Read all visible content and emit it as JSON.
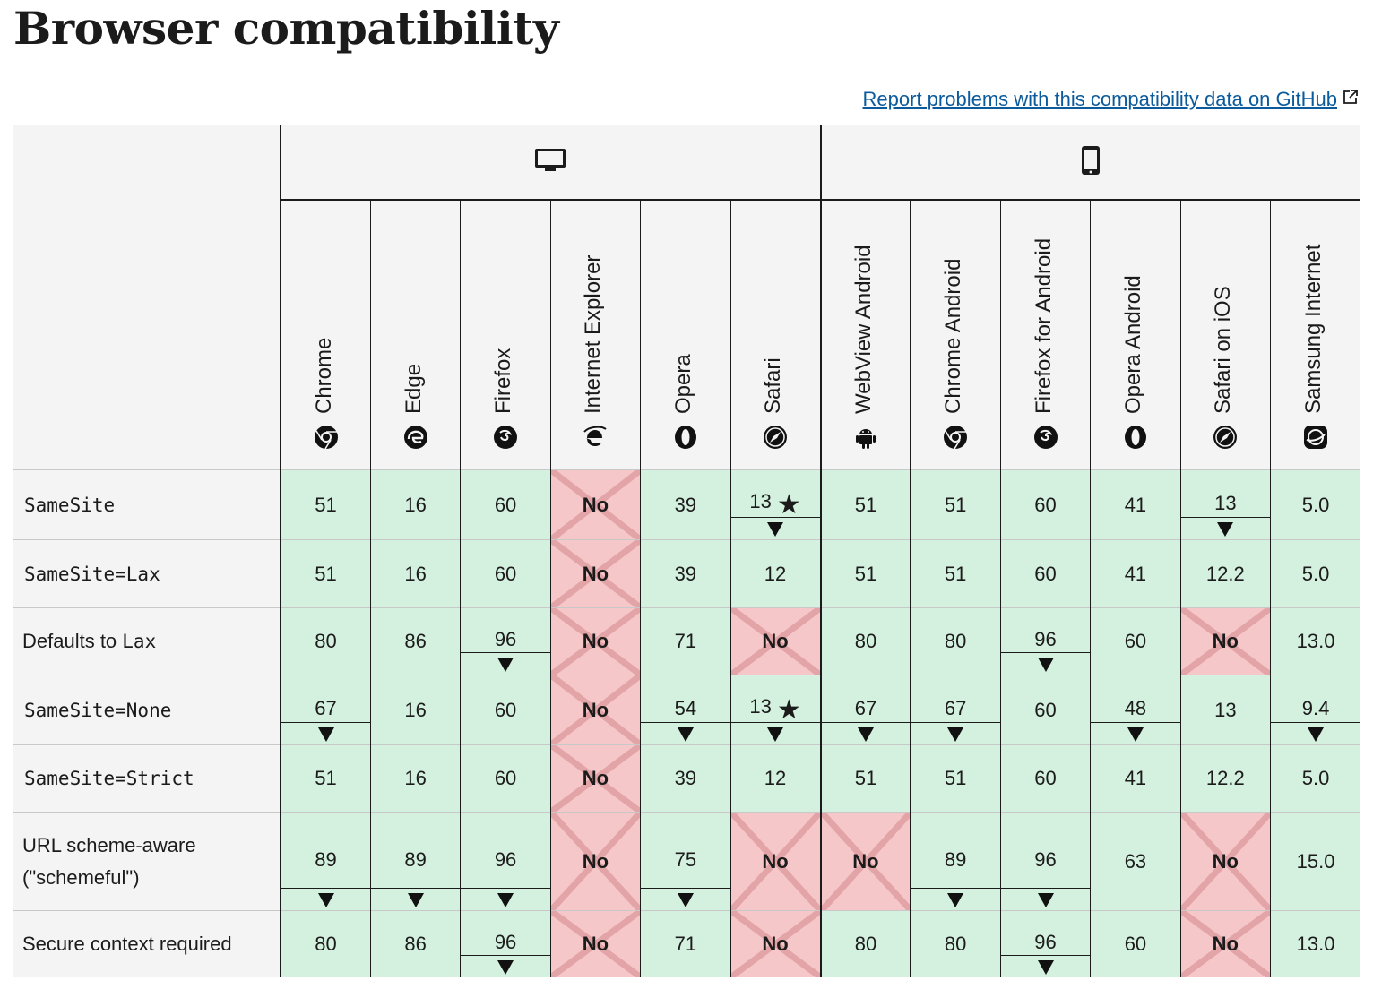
{
  "page": {
    "title": "Browser compatibility",
    "report_link": "Report problems with this compatibility data on GitHub"
  },
  "platforms": {
    "desktop_icon": "desktop-icon",
    "mobile_icon": "mobile-icon"
  },
  "browsers": [
    {
      "name": "Chrome",
      "icon": "chrome-icon"
    },
    {
      "name": "Edge",
      "icon": "edge-icon"
    },
    {
      "name": "Firefox",
      "icon": "firefox-icon"
    },
    {
      "name": "Internet Explorer",
      "icon": "ie-icon"
    },
    {
      "name": "Opera",
      "icon": "opera-icon"
    },
    {
      "name": "Safari",
      "icon": "safari-icon"
    },
    {
      "name": "WebView Android",
      "icon": "android-icon"
    },
    {
      "name": "Chrome Android",
      "icon": "chrome-icon"
    },
    {
      "name": "Firefox for Android",
      "icon": "firefox-icon"
    },
    {
      "name": "Opera Android",
      "icon": "opera-icon"
    },
    {
      "name": "Safari on iOS",
      "icon": "safari-icon"
    },
    {
      "name": "Samsung Internet",
      "icon": "samsung-icon"
    }
  ],
  "colors": {
    "yes": "#d4f0df",
    "no": "#f6c7c9",
    "link": "#0b5a9c"
  },
  "features": [
    {
      "label": "SameSite",
      "code": true,
      "cells": [
        {
          "v": "51"
        },
        {
          "v": "16"
        },
        {
          "v": "60"
        },
        {
          "v": "No",
          "no": true
        },
        {
          "v": "39"
        },
        {
          "v": "13",
          "star": true,
          "arrow": true
        },
        {
          "v": "51"
        },
        {
          "v": "51"
        },
        {
          "v": "60"
        },
        {
          "v": "41"
        },
        {
          "v": "13",
          "arrow": true
        },
        {
          "v": "5.0"
        }
      ]
    },
    {
      "label": "SameSite=Lax",
      "code": true,
      "cells": [
        {
          "v": "51"
        },
        {
          "v": "16"
        },
        {
          "v": "60"
        },
        {
          "v": "No",
          "no": true
        },
        {
          "v": "39"
        },
        {
          "v": "12"
        },
        {
          "v": "51"
        },
        {
          "v": "51"
        },
        {
          "v": "60"
        },
        {
          "v": "41"
        },
        {
          "v": "12.2"
        },
        {
          "v": "5.0"
        }
      ]
    },
    {
      "label": "Defaults to ",
      "code_suffix": "Lax",
      "cells": [
        {
          "v": "80"
        },
        {
          "v": "86"
        },
        {
          "v": "96",
          "arrow": true
        },
        {
          "v": "No",
          "no": true
        },
        {
          "v": "71"
        },
        {
          "v": "No",
          "no": true
        },
        {
          "v": "80"
        },
        {
          "v": "80"
        },
        {
          "v": "96",
          "arrow": true
        },
        {
          "v": "60"
        },
        {
          "v": "No",
          "no": true
        },
        {
          "v": "13.0"
        }
      ]
    },
    {
      "label": "SameSite=None",
      "code": true,
      "cells": [
        {
          "v": "67",
          "arrow": true
        },
        {
          "v": "16"
        },
        {
          "v": "60"
        },
        {
          "v": "No",
          "no": true
        },
        {
          "v": "54",
          "arrow": true
        },
        {
          "v": "13",
          "star": true,
          "arrow": true
        },
        {
          "v": "67",
          "arrow": true
        },
        {
          "v": "67",
          "arrow": true
        },
        {
          "v": "60"
        },
        {
          "v": "48",
          "arrow": true
        },
        {
          "v": "13"
        },
        {
          "v": "9.4",
          "arrow": true
        }
      ]
    },
    {
      "label": "SameSite=Strict",
      "code": true,
      "cells": [
        {
          "v": "51"
        },
        {
          "v": "16"
        },
        {
          "v": "60"
        },
        {
          "v": "No",
          "no": true
        },
        {
          "v": "39"
        },
        {
          "v": "12"
        },
        {
          "v": "51"
        },
        {
          "v": "51"
        },
        {
          "v": "60"
        },
        {
          "v": "41"
        },
        {
          "v": "12.2"
        },
        {
          "v": "5.0"
        }
      ]
    },
    {
      "label": "URL scheme-aware",
      "label2": "(\"schemeful\")",
      "cells": [
        {
          "v": "89",
          "arrow": true
        },
        {
          "v": "89",
          "arrow": true
        },
        {
          "v": "96",
          "arrow": true
        },
        {
          "v": "No",
          "no": true
        },
        {
          "v": "75",
          "arrow": true
        },
        {
          "v": "No",
          "no": true
        },
        {
          "v": "No",
          "no": true
        },
        {
          "v": "89",
          "arrow": true
        },
        {
          "v": "96",
          "arrow": true
        },
        {
          "v": "63"
        },
        {
          "v": "No",
          "no": true
        },
        {
          "v": "15.0"
        }
      ]
    },
    {
      "label": "Secure context required",
      "cells": [
        {
          "v": "80"
        },
        {
          "v": "86"
        },
        {
          "v": "96",
          "arrow": true
        },
        {
          "v": "No",
          "no": true
        },
        {
          "v": "71"
        },
        {
          "v": "No",
          "no": true
        },
        {
          "v": "80"
        },
        {
          "v": "80"
        },
        {
          "v": "96",
          "arrow": true
        },
        {
          "v": "60"
        },
        {
          "v": "No",
          "no": true
        },
        {
          "v": "13.0"
        }
      ]
    }
  ]
}
